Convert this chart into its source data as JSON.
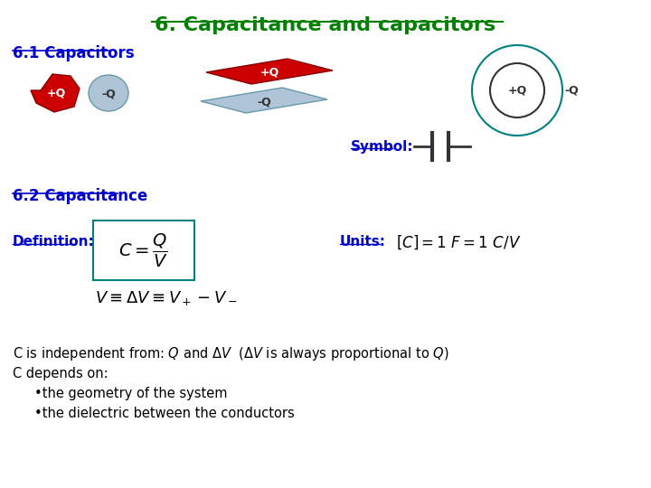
{
  "title": "6. Capacitance and capacitors",
  "title_color": "#008000",
  "title_fontsize": 16,
  "background_color": "#ffffff",
  "text_color": "#0000CD",
  "section_61": "6.1 Capacitors",
  "section_62": "6.2 Capacitance",
  "symbol_label": "Symbol:",
  "definition_label": "Definition:",
  "units_label": "Units:",
  "blob_plus_color": "#cc0000",
  "blob_minus_color": "#b0c4d8",
  "plate_plus_color": "#cc0000",
  "plate_minus_color": "#b0c4d8",
  "sphere_outer_border": "#008080",
  "sphere_inner_border": "#333333",
  "capacitor_symbol_color": "#333333",
  "box_border_color": "#008080"
}
